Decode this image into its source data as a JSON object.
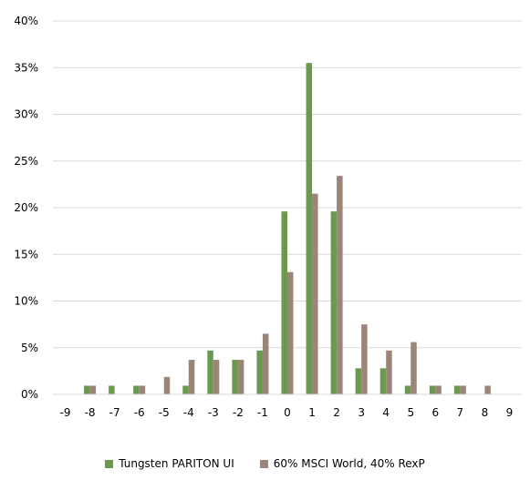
{
  "chart_data": {
    "type": "bar",
    "title": "",
    "xlabel": "",
    "ylabel": "",
    "categories": [
      "-9",
      "-8",
      "-7",
      "-6",
      "-5",
      "-4",
      "-3",
      "-2",
      "-1",
      "0",
      "1",
      "2",
      "3",
      "4",
      "5",
      "6",
      "7",
      "8",
      "9"
    ],
    "ylim": [
      0,
      40
    ],
    "yticks": [
      "0%",
      "5%",
      "10%",
      "15%",
      "20%",
      "25%",
      "30%",
      "35%",
      "40%"
    ],
    "ytick_values": [
      0,
      5,
      10,
      15,
      20,
      25,
      30,
      35,
      40
    ],
    "grid": true,
    "legend_position": "bottom",
    "series": [
      {
        "name": "Tungsten PARITON UI",
        "color": "#6b9a4f",
        "values": [
          0,
          0.93,
          0.93,
          0.93,
          0,
          0.93,
          4.7,
          3.7,
          4.7,
          19.6,
          35.5,
          19.6,
          2.8,
          2.8,
          0.93,
          0.93,
          0.93,
          0,
          0
        ]
      },
      {
        "name": "60% MSCI World, 40% RexP",
        "color": "#9b8579",
        "values": [
          0,
          0.93,
          0,
          0.93,
          1.87,
          3.7,
          3.7,
          3.7,
          6.5,
          13.1,
          21.5,
          23.4,
          7.5,
          4.7,
          5.6,
          0.93,
          0.93,
          0.93,
          0
        ]
      }
    ]
  }
}
